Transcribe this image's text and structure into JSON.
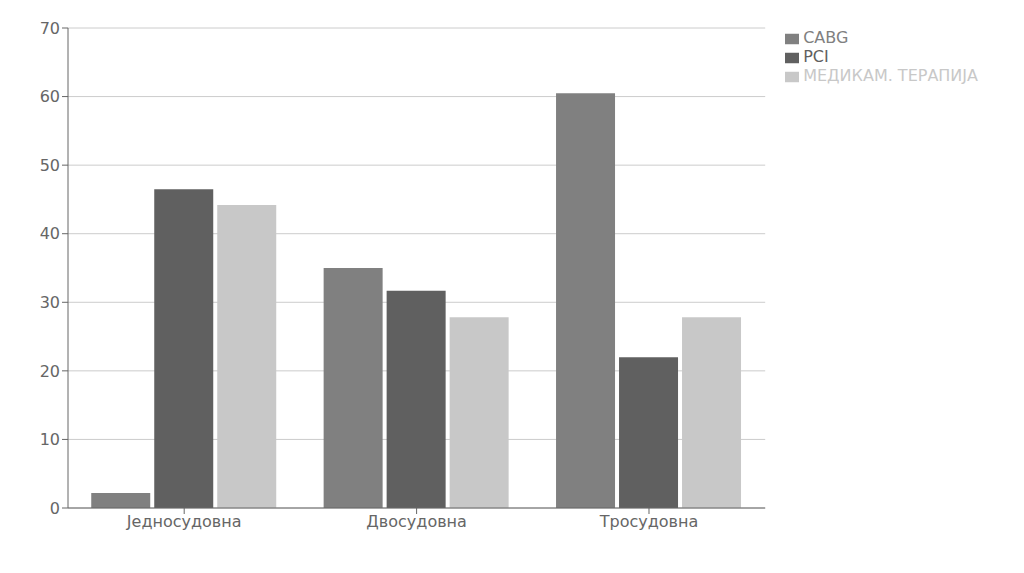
{
  "chart_data": {
    "type": "bar",
    "categories": [
      "Једносудовна",
      "Двосудовна",
      "Тросудовна"
    ],
    "series": [
      {
        "name": "CABG",
        "values": [
          2.2,
          35.0,
          60.5
        ],
        "color": "#808080"
      },
      {
        "name": "PCI",
        "values": [
          46.5,
          31.7,
          22.0
        ],
        "color": "#606060"
      },
      {
        "name": "МЕДИКАМ. ТЕРАПИЈА",
        "values": [
          44.2,
          27.8,
          27.8
        ],
        "color": "#c8c8c8"
      }
    ],
    "ylim": [
      0,
      70
    ],
    "yticks": [
      0,
      10,
      20,
      30,
      40,
      50,
      60,
      70
    ],
    "grid": true,
    "legend": "upper right"
  }
}
